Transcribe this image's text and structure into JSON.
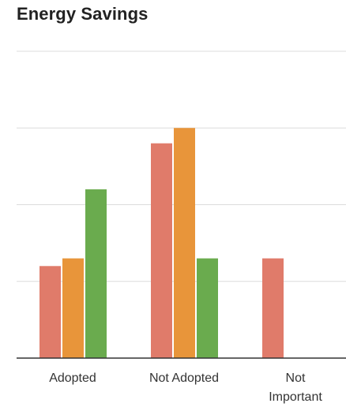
{
  "chart_data": {
    "type": "bar",
    "title": "Energy Savings",
    "categories": [
      "Adopted",
      "Not Adopted",
      "Not\nImportant"
    ],
    "series": [
      {
        "values": [
          1.2,
          2.8,
          1.3
        ],
        "color": "#e07b6a"
      },
      {
        "values": [
          1.3,
          3.0,
          0
        ],
        "color": "#e8953a"
      },
      {
        "values": [
          2.2,
          1.3,
          0
        ],
        "color": "#6aab4e"
      }
    ],
    "ylim": [
      0,
      4
    ],
    "grid": true,
    "legend": "none"
  }
}
